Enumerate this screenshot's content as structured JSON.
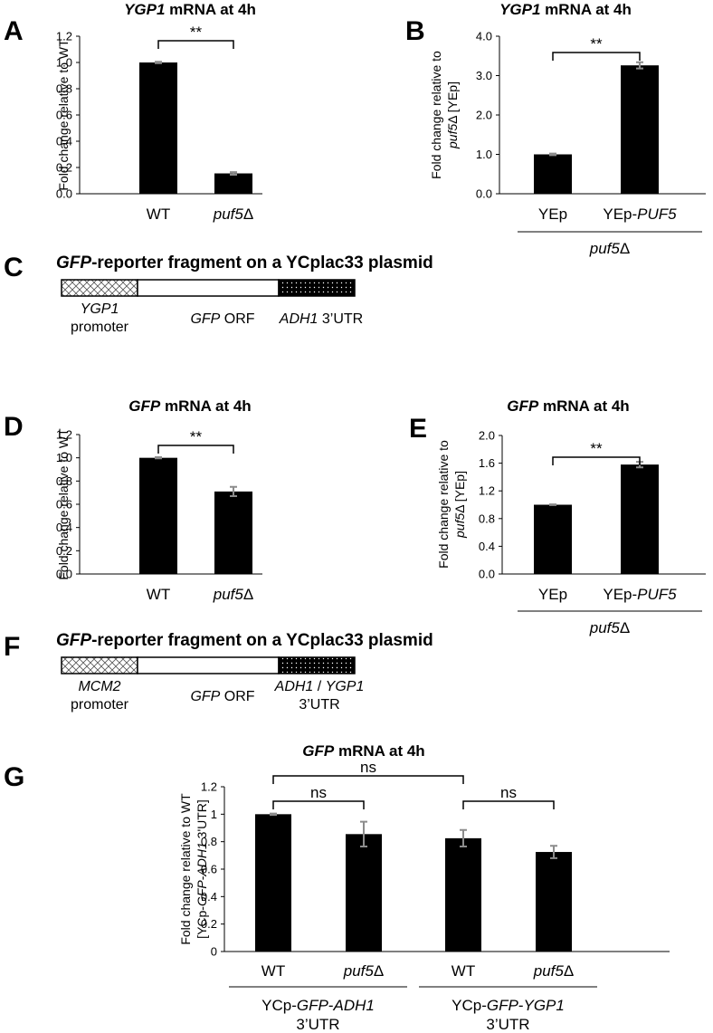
{
  "figure": {
    "panel_c": {
      "letter": "C",
      "title_gene": "GFP",
      "title_rest": "-reporter fragment on a YCplac33 plasmid",
      "promoter_gene": "YGP1",
      "promoter_word": "promoter",
      "orf_gene": "GFP",
      "orf_word": " ORF",
      "utr_gene": "ADH1",
      "utr_word": " 3’UTR"
    },
    "panel_f": {
      "letter": "F",
      "title_gene": "GFP",
      "title_rest": "-reporter fragment on a YCplac33 plasmid",
      "promoter_gene": "MCM2",
      "promoter_word": "promoter",
      "orf_gene": "GFP",
      "orf_word": " ORF",
      "utr_gene_1": "ADH1",
      "utr_sep": " / ",
      "utr_gene_2": "YGP1",
      "utr_word": "3’UTR"
    }
  },
  "chart_data": [
    {
      "panel": "A",
      "type": "bar",
      "title_italic": "YGP1",
      "title_rest": " mRNA at 4h",
      "ylabel": "Fold change relative to WT",
      "categories": [
        "WT",
        "puf5Δ"
      ],
      "values": [
        1.0,
        0.155
      ],
      "errors": [
        0.005,
        0.01
      ],
      "ylim": [
        0,
        1.2
      ],
      "yticks": [
        "0.0",
        "0.2",
        "0.4",
        "0.6",
        "0.8",
        "1.0",
        "1.2"
      ],
      "significance": [
        {
          "from": 0,
          "to": 1,
          "label": "**"
        }
      ]
    },
    {
      "panel": "B",
      "type": "bar",
      "title_italic": "YGP1",
      "title_rest": " mRNA at 4h",
      "ylabel_line1": "Fold change relative to",
      "ylabel_line2": "puf5Δ [YEp]",
      "categories": [
        "YEp",
        "YEp-PUF5"
      ],
      "values": [
        1.0,
        3.26
      ],
      "errors": [
        0.02,
        0.08
      ],
      "ylim": [
        0,
        4.0
      ],
      "yticks": [
        "0.0",
        "1.0",
        "2.0",
        "3.0",
        "4.0"
      ],
      "group_label": "puf5Δ",
      "significance": [
        {
          "from": 0,
          "to": 1,
          "label": "**"
        }
      ]
    },
    {
      "panel": "D",
      "type": "bar",
      "title_italic": "GFP",
      "title_rest": " mRNA at 4h",
      "ylabel": "Fold change relative to WT",
      "categories": [
        "WT",
        "puf5Δ"
      ],
      "values": [
        1.0,
        0.71
      ],
      "errors": [
        0.005,
        0.04
      ],
      "ylim": [
        0,
        1.2
      ],
      "yticks": [
        "0.0",
        "0.2",
        "0.4",
        "0.6",
        "0.8",
        "1.0",
        "1.2"
      ],
      "significance": [
        {
          "from": 0,
          "to": 1,
          "label": "**"
        }
      ]
    },
    {
      "panel": "E",
      "type": "bar",
      "title_italic": "GFP",
      "title_rest": " mRNA at 4h",
      "ylabel_line1": "Fold change relative to",
      "ylabel_line2": "puf5Δ [YEp]",
      "categories": [
        "YEp",
        "YEp-PUF5"
      ],
      "values": [
        1.0,
        1.58
      ],
      "errors": [
        0.005,
        0.04
      ],
      "ylim": [
        0,
        2.0
      ],
      "yticks": [
        "0.0",
        "0.4",
        "0.8",
        "1.2",
        "1.6",
        "2.0"
      ],
      "group_label": "puf5Δ",
      "significance": [
        {
          "from": 0,
          "to": 1,
          "label": "**"
        }
      ]
    },
    {
      "panel": "G",
      "type": "bar",
      "title_italic": "GFP",
      "title_rest": " mRNA at 4h",
      "ylabel_line1": "Fold change relative to WT",
      "ylabel_line2": "[YCp-GFP-ADH1 3'UTR]",
      "categories": [
        "WT",
        "puf5Δ",
        "WT",
        "puf5Δ"
      ],
      "values": [
        1.0,
        0.855,
        0.825,
        0.725
      ],
      "errors": [
        0.005,
        0.09,
        0.06,
        0.045
      ],
      "ylim": [
        0,
        1.2
      ],
      "yticks": [
        "0",
        "0.2",
        "0.4",
        "0.6",
        "0.8",
        "1",
        "1.2"
      ],
      "groups": [
        {
          "line1": "YCp-GFP-ADH1",
          "line2": "3’UTR"
        },
        {
          "line1": "YCp-GFP-YGP1",
          "line2": "3’UTR"
        }
      ],
      "significance": [
        {
          "from": 0,
          "to": 1,
          "label": "ns"
        },
        {
          "from": 2,
          "to": 3,
          "label": "ns"
        },
        {
          "from": 0,
          "to": 2,
          "label": "ns"
        }
      ]
    }
  ]
}
